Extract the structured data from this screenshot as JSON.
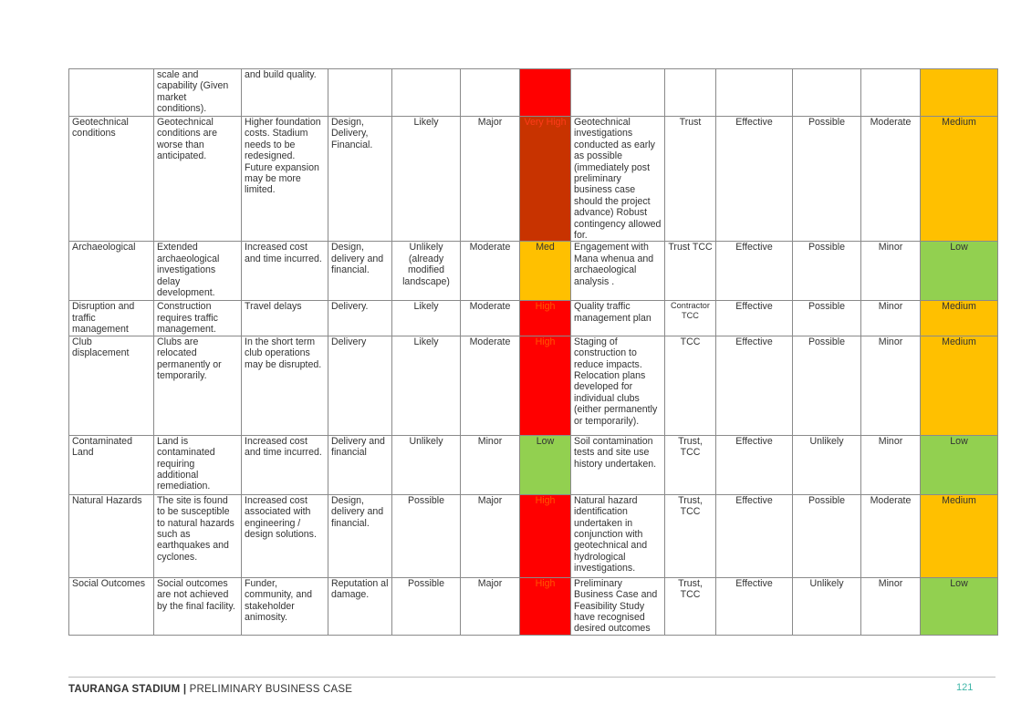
{
  "colors": {
    "very_high": "#c83300",
    "high": "#ff0000",
    "med": "#ffc000",
    "low": "#92d050",
    "footer_accent": "#3fb6a8"
  },
  "rows": [
    {
      "risk": "",
      "cause": "scale and capability (Given market conditions).",
      "impact": "and build quality.",
      "category": "",
      "likelihood": "",
      "consequence": "",
      "inherent": "",
      "inherent_level": "high",
      "mitigation": "",
      "owner": "",
      "effectiveness": "",
      "res_likelihood": "",
      "res_consequence": "",
      "residual": "",
      "residual_level": "med"
    },
    {
      "risk": "Geotechnical conditions",
      "cause": "Geotechnical conditions are worse than anticipated.",
      "impact": "Higher foundation costs. Stadium needs to be redesigned. Future expansion may be more limited.",
      "category": "Design, Delivery, Financial.",
      "likelihood": "Likely",
      "consequence": "Major",
      "inherent": "Very High",
      "inherent_level": "very_high",
      "mitigation": "Geotechnical investigations conducted as early as possible (immediately post preliminary business case should the project advance) Robust contingency allowed for.",
      "owner": "Trust",
      "effectiveness": "Effective",
      "res_likelihood": "Possible",
      "res_consequence": "Moderate",
      "residual": "Medium",
      "residual_level": "med"
    },
    {
      "risk": "Archaeological",
      "cause": "Extended archaeological investigations delay development.",
      "impact": "Increased cost and time incurred.",
      "category": "Design, delivery and financial.",
      "likelihood": "Unlikely (already modified landscape)",
      "consequence": "Moderate",
      "inherent": "Med",
      "inherent_level": "med",
      "mitigation": "Engagement with Mana whenua and archaeological analysis .",
      "owner": "Trust TCC",
      "effectiveness": "Effective",
      "res_likelihood": "Possible",
      "res_consequence": "Minor",
      "residual": "Low",
      "residual_level": "low"
    },
    {
      "risk": "Disruption and traffic management",
      "cause": "Construction requires traffic management.",
      "impact": "Travel delays",
      "category": "Delivery.",
      "likelihood": "Likely",
      "consequence": "Moderate",
      "inherent": "High",
      "inherent_level": "high",
      "mitigation": "Quality traffic management plan",
      "owner": "Contractor TCC",
      "owner_small": true,
      "effectiveness": "Effective",
      "res_likelihood": "Possible",
      "res_consequence": "Minor",
      "residual": "Medium",
      "residual_level": "med"
    },
    {
      "risk": "Club displacement",
      "cause": "Clubs are relocated permanently or temporarily.",
      "impact": "In the short term club operations may be disrupted.",
      "category": "Delivery",
      "likelihood": "Likely",
      "consequence": "Moderate",
      "inherent": "High",
      "inherent_level": "high",
      "mitigation": "Staging of construction to reduce impacts. Relocation plans developed for individual clubs (either permanently or temporarily).",
      "owner": "TCC",
      "effectiveness": "Effective",
      "res_likelihood": "Possible",
      "res_consequence": "Minor",
      "residual": "Medium",
      "residual_level": "med"
    },
    {
      "risk": "Contaminated Land",
      "cause": "Land is contaminated requiring additional remediation.",
      "impact": "Increased cost and time incurred.",
      "category": "Delivery and financial",
      "likelihood": "Unlikely",
      "consequence": "Minor",
      "inherent": "Low",
      "inherent_level": "low",
      "mitigation": "Soil contamination tests and site use history undertaken.",
      "owner": "Trust, TCC",
      "effectiveness": "Effective",
      "res_likelihood": "Unlikely",
      "res_consequence": "Minor",
      "residual": "Low",
      "residual_level": "low"
    },
    {
      "risk": "Natural Hazards",
      "cause": "The site is found to be susceptible to natural hazards such as earthquakes and cyclones.",
      "impact": "Increased cost associated with engineering / design solutions.",
      "category": "Design, delivery and financial.",
      "likelihood": "Possible",
      "consequence": "Major",
      "inherent": "High",
      "inherent_level": "high",
      "mitigation": "Natural hazard identification undertaken in conjunction with geotechnical and hydrological investigations.",
      "owner": "Trust, TCC",
      "effectiveness": "Effective",
      "res_likelihood": "Possible",
      "res_consequence": "Moderate",
      "residual": "Medium",
      "residual_level": "med"
    },
    {
      "risk": "Social Outcomes",
      "cause": "Social outcomes are not achieved by the final facility.",
      "impact": "Funder, community, and stakeholder animosity.",
      "category": "Reputation al damage.",
      "likelihood": "Possible",
      "consequence": "Major",
      "inherent": "High",
      "inherent_level": "high",
      "mitigation": "Preliminary Business Case and Feasibility Study have recognised desired outcomes",
      "owner": "Trust, TCC",
      "effectiveness": "Effective",
      "res_likelihood": "Unlikely",
      "res_consequence": "Minor",
      "residual": "Low",
      "residual_level": "low"
    }
  ],
  "footer": {
    "title_bold": "TAURANGA STADIUM |",
    "title_rest": " PRELIMINARY BUSINESS CASE",
    "page_number": "121"
  }
}
